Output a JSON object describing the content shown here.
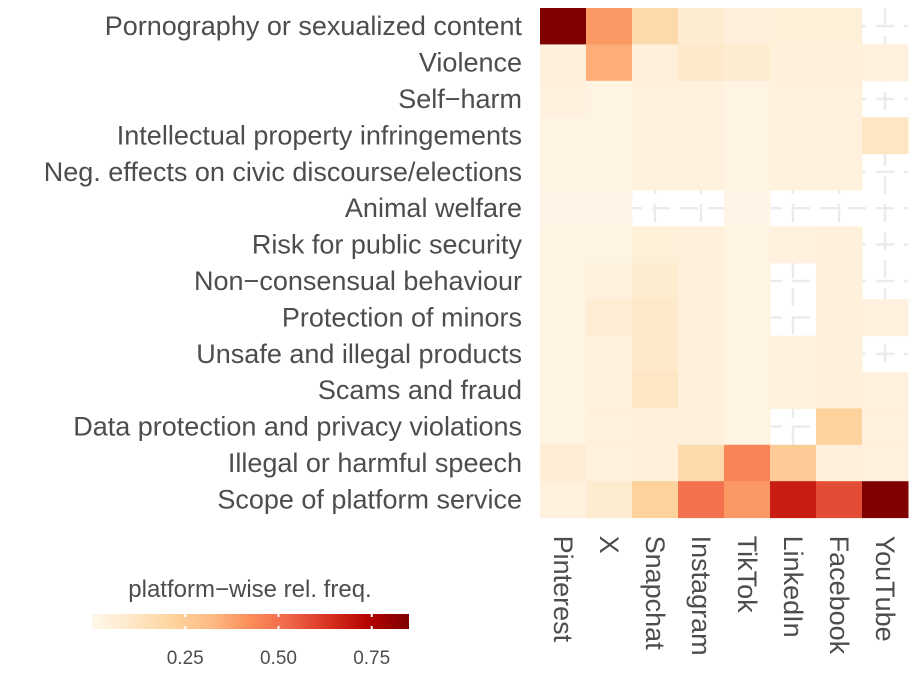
{
  "chart_data": {
    "type": "heatmap",
    "title": "",
    "rows": [
      "Pornography or sexualized content",
      "Violence",
      "Self−harm",
      "Intellectual property infringements",
      "Neg. effects on civic discourse/elections",
      "Animal welfare",
      "Risk for public security",
      "Non−consensual behaviour",
      "Protection of minors",
      "Unsafe and illegal products",
      "Scams and fraud",
      "Data protection and privacy violations",
      "Illegal or harmful speech",
      "Scope of platform service"
    ],
    "columns": [
      "Pinterest",
      "X",
      "Snapchat",
      "Instagram",
      "TikTok",
      "LinkedIn",
      "Facebook",
      "YouTube"
    ],
    "values": [
      [
        0.85,
        0.4,
        0.18,
        0.08,
        0.05,
        0.06,
        0.06,
        null
      ],
      [
        0.05,
        0.35,
        0.05,
        0.1,
        0.08,
        0.05,
        0.05,
        0.04
      ],
      [
        0.04,
        0.03,
        0.04,
        0.04,
        0.03,
        0.04,
        0.04,
        null
      ],
      [
        0.03,
        0.03,
        0.04,
        0.04,
        0.03,
        0.04,
        0.04,
        0.12
      ],
      [
        0.03,
        0.03,
        0.04,
        0.04,
        0.03,
        0.04,
        0.04,
        null
      ],
      [
        0.02,
        0.02,
        null,
        null,
        0.02,
        null,
        null,
        null
      ],
      [
        0.03,
        0.03,
        0.06,
        0.05,
        0.03,
        0.04,
        0.05,
        null
      ],
      [
        0.03,
        0.04,
        0.08,
        0.05,
        0.03,
        null,
        0.05,
        null
      ],
      [
        0.03,
        0.07,
        0.1,
        0.05,
        0.03,
        null,
        0.05,
        0.04
      ],
      [
        0.03,
        0.04,
        0.1,
        0.05,
        0.03,
        0.04,
        0.05,
        null
      ],
      [
        0.03,
        0.04,
        0.12,
        0.05,
        0.03,
        0.04,
        0.05,
        0.04
      ],
      [
        0.03,
        0.04,
        0.05,
        0.05,
        0.03,
        null,
        0.22,
        0.04
      ],
      [
        0.07,
        0.04,
        0.05,
        0.18,
        0.45,
        0.25,
        0.05,
        0.04
      ],
      [
        0.04,
        0.08,
        0.22,
        0.5,
        0.4,
        0.68,
        0.58,
        0.85
      ]
    ],
    "legend": {
      "title": "platform−wise rel. freq.",
      "ticks": [
        0.25,
        0.5,
        0.75
      ],
      "tick_labels": [
        "0.25",
        "0.50",
        "0.75"
      ],
      "range": [
        0.0,
        0.85
      ],
      "placement": "bottom-left"
    },
    "colors": [
      "#fff7ec",
      "#fee8c8",
      "#fdd49e",
      "#fdbb84",
      "#fc8d59",
      "#ef6548",
      "#d7301f",
      "#b30000",
      "#7f0000"
    ],
    "na_color": "#ebebeb"
  }
}
